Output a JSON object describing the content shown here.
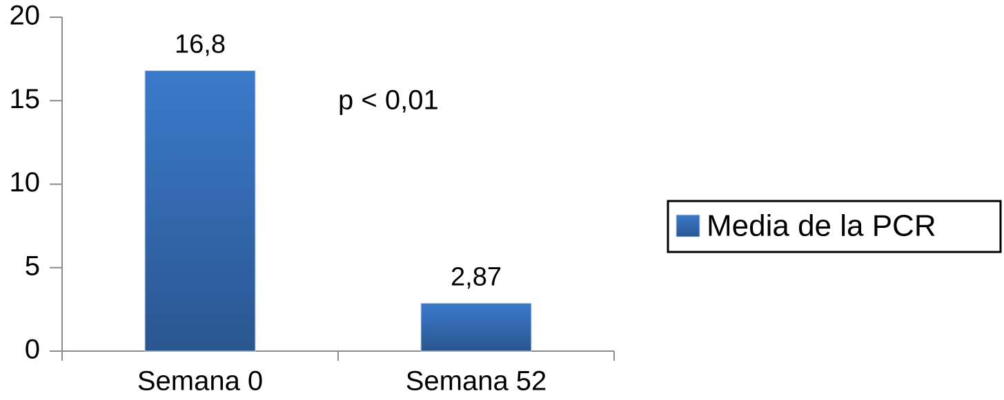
{
  "chart_data": {
    "type": "bar",
    "categories": [
      "Semana 0",
      "Semana 52"
    ],
    "series": [
      {
        "name": "Media de la PCR",
        "color": "#3a7acb",
        "values": [
          16.8,
          2.87
        ],
        "value_labels": [
          "16,8",
          "2,87"
        ]
      }
    ],
    "annotation": "p < 0,01",
    "ylim": [
      0,
      20
    ],
    "yticks": [
      0,
      5,
      10,
      15,
      20
    ],
    "legend": "right",
    "grid": false
  }
}
